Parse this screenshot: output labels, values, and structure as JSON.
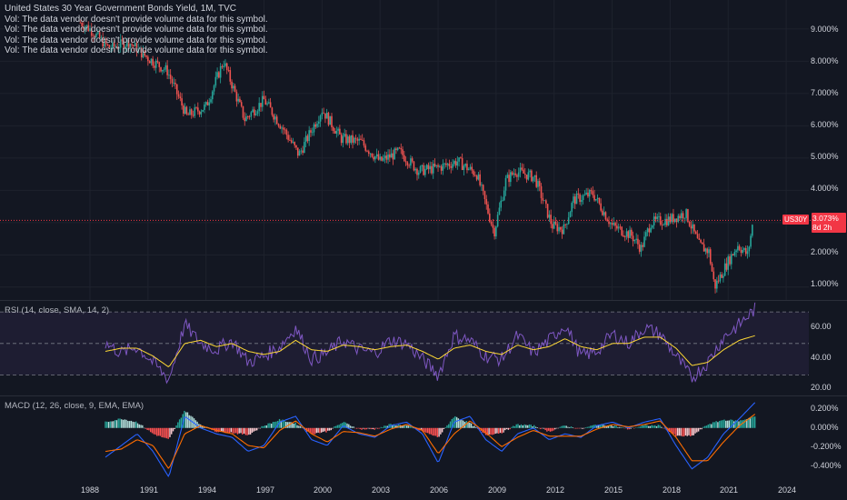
{
  "main": {
    "title": "United States 30 Year Government Bonds Yield, 1M, TVC",
    "vol_notes": [
      "Vol: The data vendor doesn't provide volume data for this symbol.",
      "Vol: The data vendor doesn't provide volume data for this symbol.",
      "Vol: The data vendor doesn't provide volume data for this symbol.",
      "Vol: The data vendor doesn't provide volume data for this symbol."
    ],
    "yticks": [
      "9.000%",
      "8.000%",
      "7.000%",
      "6.000%",
      "5.000%",
      "4.000%",
      "2.000%",
      "1.000%"
    ],
    "symbol_tag": "US30Y",
    "last_price": "3.073%",
    "countdown": "8d 2h"
  },
  "rsi": {
    "legend": "RSI (14, close, SMA, 14, 2)",
    "yticks": [
      "60.00",
      "40.00",
      "20.00"
    ]
  },
  "macd": {
    "legend": "MACD (12, 26, close, 9, EMA, EMA)",
    "yticks": [
      "0.200%",
      "0.000%",
      "-0.200%",
      "-0.400%"
    ]
  },
  "xaxis": {
    "ticks": [
      "1988",
      "1991",
      "1994",
      "1997",
      "2000",
      "2003",
      "2006",
      "2009",
      "2012",
      "2015",
      "2018",
      "2021",
      "2024"
    ]
  },
  "colors": {
    "background": "#131722",
    "up": "#26a69a",
    "down": "#ef5350",
    "rsi_line": "#7e57c2",
    "rsi_ma": "#fdd835",
    "macd_line": "#2962ff",
    "signal_line": "#ff6d00",
    "last_price": "#f23645"
  },
  "chart_data": [
    {
      "type": "line",
      "title": "United States 30 Year Government Bonds Yield, 1M, TVC",
      "x": [
        1987.5,
        1988,
        1989,
        1990,
        1991,
        1992,
        1993,
        1994,
        1994.9,
        1996,
        1997,
        1998,
        1998.8,
        2000,
        2001,
        2002,
        2003,
        2004,
        2005,
        2006,
        2007,
        2008,
        2008.9,
        2009.5,
        2010,
        2011,
        2011.9,
        2012.5,
        2013,
        2014,
        2015,
        2016,
        2016.5,
        2017,
        2018,
        2018.8,
        2019.5,
        2020,
        2020.3,
        2021,
        2021.5,
        2022,
        2022.3
      ],
      "values": [
        9.2,
        9.0,
        8.4,
        8.6,
        8.1,
        7.7,
        6.3,
        6.6,
        8.0,
        6.2,
        6.8,
        5.9,
        5.1,
        6.5,
        5.6,
        5.5,
        4.9,
        5.2,
        4.6,
        4.7,
        4.9,
        4.5,
        2.7,
        4.3,
        4.6,
        4.4,
        2.9,
        2.8,
        3.7,
        3.9,
        2.9,
        2.6,
        2.2,
        3.0,
        3.1,
        3.3,
        2.3,
        2.1,
        1.0,
        1.8,
        2.3,
        2.0,
        3.07
      ],
      "ylim": [
        0.6,
        9.9
      ],
      "ylabel": "",
      "yunit": "%"
    },
    {
      "type": "line",
      "title": "RSI (14, close, SMA, 14, 2)",
      "series": [
        {
          "values": [
            50,
            44,
            48,
            38,
            27,
            62,
            50,
            46,
            52,
            38,
            42,
            48,
            60,
            40,
            44,
            52,
            46,
            44,
            52,
            50,
            40,
            30,
            55,
            52,
            42,
            40,
            55,
            44,
            52,
            62,
            42,
            45,
            56,
            50,
            60,
            56,
            42,
            28,
            38,
            54,
            62,
            72
          ]
        },
        {
          "values": [
            45,
            47,
            47,
            42,
            35,
            50,
            52,
            48,
            50,
            45,
            43,
            45,
            52,
            46,
            45,
            49,
            48,
            46,
            48,
            49,
            45,
            40,
            47,
            49,
            45,
            43,
            49,
            46,
            48,
            53,
            48,
            46,
            50,
            50,
            54,
            54,
            47,
            36,
            38,
            46,
            52,
            55
          ]
        }
      ],
      "bands": [
        70,
        50,
        30
      ],
      "ylim": [
        17,
        77
      ]
    },
    {
      "type": "bar",
      "title": "MACD (12, 26, close, 9, EMA, EMA)",
      "series": [
        {
          "values": [
            -0.25,
            -0.15,
            -0.05,
            -0.2,
            -0.42,
            0.1,
            0.0,
            -0.05,
            -0.08,
            -0.2,
            -0.15,
            0.05,
            0.1,
            -0.1,
            -0.15,
            0.02,
            -0.05,
            -0.08,
            0.02,
            0.05,
            -0.05,
            -0.3,
            0.05,
            0.1,
            -0.1,
            -0.2,
            -0.05,
            0.0,
            -0.1,
            -0.05,
            -0.08,
            0.02,
            0.05,
            0.0,
            0.05,
            0.08,
            -0.15,
            -0.35,
            -0.25,
            -0.05,
            0.08,
            0.22
          ]
        },
        {
          "values": [
            -0.2,
            -0.18,
            -0.1,
            -0.15,
            -0.35,
            -0.05,
            0.02,
            -0.02,
            -0.05,
            -0.15,
            -0.17,
            -0.02,
            0.06,
            -0.05,
            -0.12,
            -0.03,
            -0.04,
            -0.07,
            -0.01,
            0.03,
            -0.02,
            -0.22,
            -0.05,
            0.06,
            -0.04,
            -0.16,
            -0.08,
            -0.02,
            -0.07,
            -0.07,
            -0.07,
            -0.01,
            0.03,
            0.01,
            0.03,
            0.06,
            -0.08,
            -0.28,
            -0.28,
            -0.12,
            0.02,
            0.12
          ]
        },
        {
          "values": [
            0.05,
            0.08,
            0.05,
            -0.05,
            -0.1,
            0.15,
            0.03,
            -0.03,
            -0.04,
            -0.06,
            0.02,
            0.07,
            0.04,
            -0.05,
            -0.03,
            0.05,
            -0.01,
            -0.01,
            0.03,
            0.02,
            -0.03,
            -0.08,
            0.1,
            0.04,
            -0.06,
            -0.04,
            0.03,
            0.02,
            -0.03,
            0.02,
            -0.01,
            0.03,
            0.02,
            -0.01,
            0.02,
            0.02,
            -0.07,
            -0.07,
            0.03,
            0.07,
            0.06,
            0.1
          ]
        }
      ],
      "ylim": [
        -0.46,
        0.27
      ],
      "yunit": "%"
    }
  ]
}
